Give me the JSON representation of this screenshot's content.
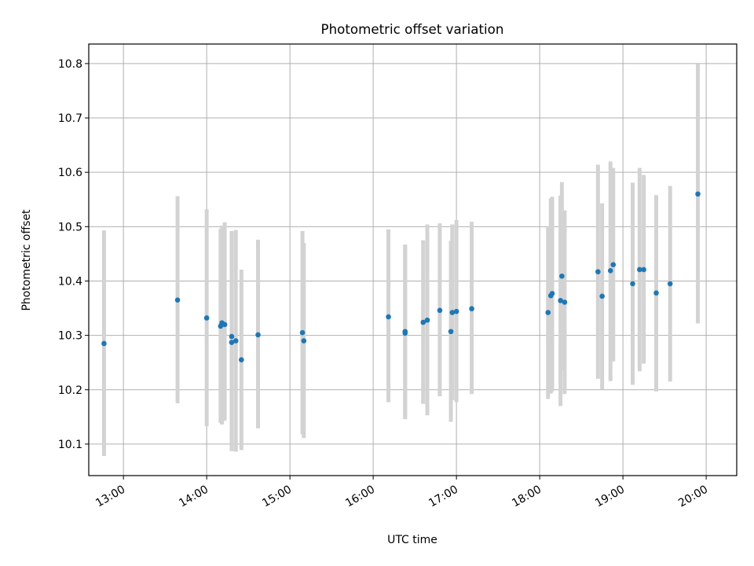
{
  "chart_data": {
    "type": "scatter",
    "title": "Photometric offset variation",
    "xlabel": "UTC time",
    "ylabel": "Photometric offset",
    "xlim": [
      "12:35",
      "20:22"
    ],
    "ylim": [
      10.042,
      10.836
    ],
    "x_ticks": [
      "13:00",
      "14:00",
      "15:00",
      "16:00",
      "17:00",
      "18:00",
      "19:00",
      "20:00"
    ],
    "y_ticks": [
      10.1,
      10.2,
      10.3,
      10.4,
      10.5,
      10.6,
      10.7,
      10.8
    ],
    "grid": true,
    "series": [
      {
        "marker_color": "#1f77b4",
        "errorbar_color": "#d3d3d3",
        "points": [
          {
            "x": "12:46",
            "y": 10.285,
            "lo": 10.078,
            "hi": 10.493
          },
          {
            "x": "13:39",
            "y": 10.365,
            "lo": 10.175,
            "hi": 10.556
          },
          {
            "x": "14:00",
            "y": 10.332,
            "lo": 10.133,
            "hi": 10.532
          },
          {
            "x": "14:10",
            "y": 10.317,
            "lo": 10.139,
            "hi": 10.496
          },
          {
            "x": "14:11",
            "y": 10.323,
            "lo": 10.136,
            "hi": 10.502
          },
          {
            "x": "14:13",
            "y": 10.32,
            "lo": 10.143,
            "hi": 10.508
          },
          {
            "x": "14:18",
            "y": 10.298,
            "lo": 10.093,
            "hi": 10.492
          },
          {
            "x": "14:18",
            "y": 10.287,
            "lo": 10.087,
            "hi": 10.488
          },
          {
            "x": "14:21",
            "y": 10.29,
            "lo": 10.086,
            "hi": 10.494
          },
          {
            "x": "14:25",
            "y": 10.255,
            "lo": 10.089,
            "hi": 10.421
          },
          {
            "x": "14:37",
            "y": 10.301,
            "lo": 10.129,
            "hi": 10.476
          },
          {
            "x": "15:09",
            "y": 10.305,
            "lo": 10.118,
            "hi": 10.492
          },
          {
            "x": "15:10",
            "y": 10.29,
            "lo": 10.111,
            "hi": 10.47
          },
          {
            "x": "16:11",
            "y": 10.334,
            "lo": 10.177,
            "hi": 10.495
          },
          {
            "x": "16:23",
            "y": 10.307,
            "lo": 10.146,
            "hi": 10.467
          },
          {
            "x": "16:23",
            "y": 10.304,
            "lo": 10.146,
            "hi": 10.467
          },
          {
            "x": "16:36",
            "y": 10.324,
            "lo": 10.174,
            "hi": 10.475
          },
          {
            "x": "16:39",
            "y": 10.328,
            "lo": 10.153,
            "hi": 10.504
          },
          {
            "x": "16:48",
            "y": 10.346,
            "lo": 10.188,
            "hi": 10.506
          },
          {
            "x": "16:56",
            "y": 10.307,
            "lo": 10.141,
            "hi": 10.474
          },
          {
            "x": "16:57",
            "y": 10.342,
            "lo": 10.181,
            "hi": 10.504
          },
          {
            "x": "17:00",
            "y": 10.344,
            "lo": 10.177,
            "hi": 10.512
          },
          {
            "x": "17:11",
            "y": 10.349,
            "lo": 10.192,
            "hi": 10.509
          },
          {
            "x": "18:06",
            "y": 10.342,
            "lo": 10.183,
            "hi": 10.501
          },
          {
            "x": "18:08",
            "y": 10.373,
            "lo": 10.193,
            "hi": 10.552
          },
          {
            "x": "18:09",
            "y": 10.377,
            "lo": 10.197,
            "hi": 10.555
          },
          {
            "x": "18:15",
            "y": 10.364,
            "lo": 10.17,
            "hi": 10.557
          },
          {
            "x": "18:16",
            "y": 10.409,
            "lo": 10.236,
            "hi": 10.582
          },
          {
            "x": "18:18",
            "y": 10.361,
            "lo": 10.192,
            "hi": 10.53
          },
          {
            "x": "18:42",
            "y": 10.417,
            "lo": 10.22,
            "hi": 10.614
          },
          {
            "x": "18:45",
            "y": 10.372,
            "lo": 10.201,
            "hi": 10.543
          },
          {
            "x": "18:51",
            "y": 10.419,
            "lo": 10.216,
            "hi": 10.62
          },
          {
            "x": "18:53",
            "y": 10.43,
            "lo": 10.252,
            "hi": 10.608
          },
          {
            "x": "19:07",
            "y": 10.395,
            "lo": 10.209,
            "hi": 10.581
          },
          {
            "x": "19:12",
            "y": 10.421,
            "lo": 10.234,
            "hi": 10.608
          },
          {
            "x": "19:15",
            "y": 10.421,
            "lo": 10.248,
            "hi": 10.595
          },
          {
            "x": "19:24",
            "y": 10.378,
            "lo": 10.197,
            "hi": 10.558
          },
          {
            "x": "19:34",
            "y": 10.395,
            "lo": 10.215,
            "hi": 10.575
          },
          {
            "x": "19:54",
            "y": 10.56,
            "lo": 10.322,
            "hi": 10.799
          }
        ]
      }
    ]
  }
}
